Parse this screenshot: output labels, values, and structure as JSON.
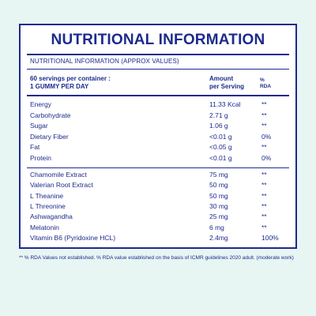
{
  "title": "NUTRITIONAL INFORMATION",
  "subtitle": "NUTRITIONAL INFORMATION (APPROX VALUES)",
  "header": {
    "servings_line1": "60 servings per container :",
    "servings_line2": "1 GUMMY PER DAY",
    "amount_line1": "Amount",
    "amount_line2": "per Serving",
    "rda_line1": "%",
    "rda_line2": "RDA"
  },
  "nutrients": [
    {
      "name": "Energy",
      "amount": "11.33 Kcal",
      "rda": "**"
    },
    {
      "name": "Carbohydrate",
      "amount": "2.71 g",
      "rda": "**"
    },
    {
      "name": "Sugar",
      "amount": "1.06 g",
      "rda": "**"
    },
    {
      "name": "Dietary Fiber",
      "amount": "<0.01 g",
      "rda": "0%"
    },
    {
      "name": "Fat",
      "amount": "<0.05 g",
      "rda": "**"
    },
    {
      "name": "Protein",
      "amount": "<0.01 g",
      "rda": "0%"
    }
  ],
  "actives": [
    {
      "name": "Chamomile Extract",
      "amount": "75 mg",
      "rda": "**"
    },
    {
      "name": "Valerian Root Extract",
      "amount": "50 mg",
      "rda": "**"
    },
    {
      "name": "L Theanine",
      "amount": "50 mg",
      "rda": "**"
    },
    {
      "name": "L Threonine",
      "amount": "30 mg",
      "rda": "**"
    },
    {
      "name": "Ashwagandha",
      "amount": "25 mg",
      "rda": "**"
    },
    {
      "name": "Melatonin",
      "amount": "6 mg",
      "rda": "**"
    },
    {
      "name": "Vitamin B6 (Pyridoxine HCL)",
      "amount": "2.4mg",
      "rda": "100%"
    }
  ],
  "footnote": "** % RDA Values not established. % RDA value established on the basis of ICMR guidelines 2020 adult. (moderate work)",
  "colors": {
    "text": "#1d2a8c",
    "background": "#e7f5f3",
    "panel": "#ffffff"
  }
}
